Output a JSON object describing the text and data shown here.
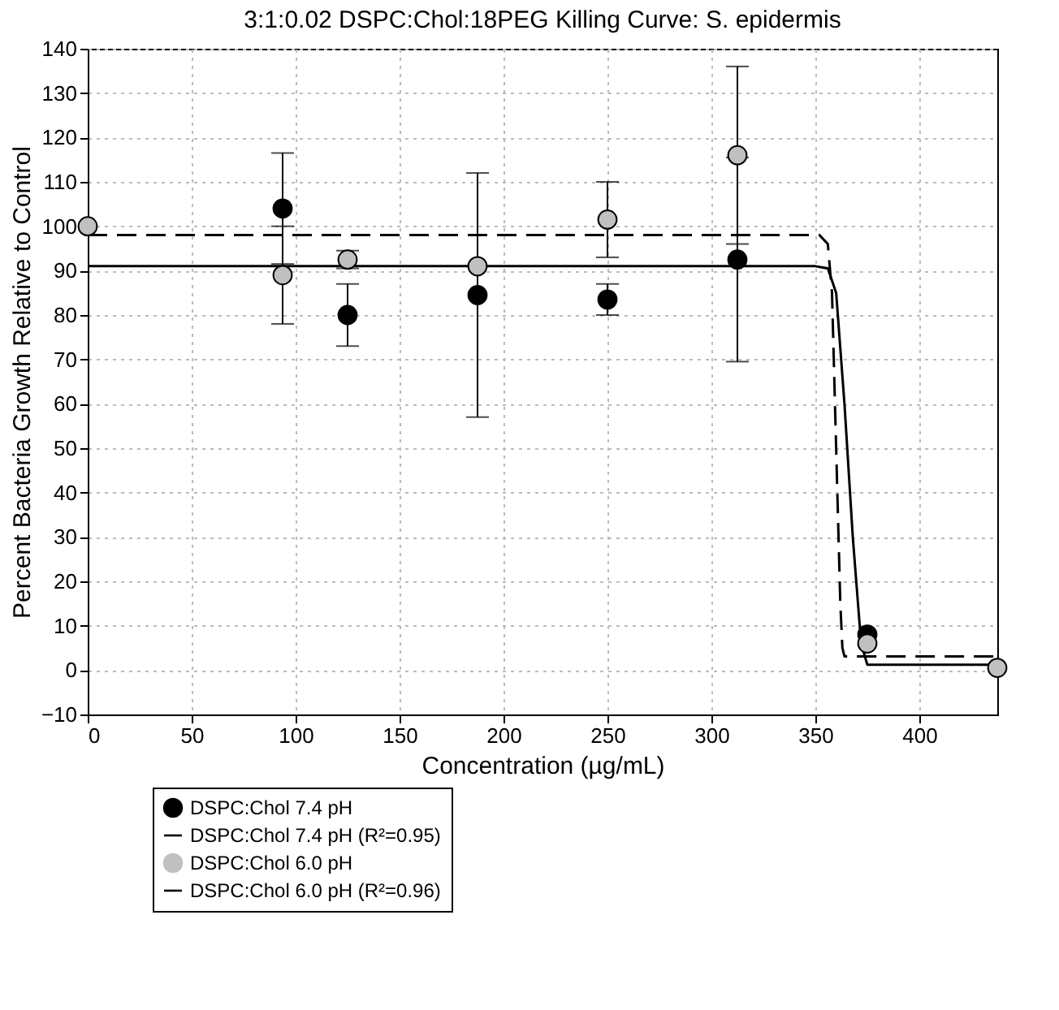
{
  "chart_data": {
    "type": "scatter",
    "title": "3:1:0.02 DSPC:Chol:18PEG Killing Curve: S. epidermis",
    "xlabel": "Concentration (µg/mL)",
    "ylabel": "Percent Bacteria Growth Relative to Control",
    "xlim": [
      0,
      437.5
    ],
    "xticks": [
      0,
      50,
      100,
      150,
      200,
      250,
      300,
      350,
      400
    ],
    "ylim": [
      -10,
      140
    ],
    "yticks": [
      -10,
      0,
      10,
      20,
      30,
      40,
      50,
      60,
      70,
      80,
      90,
      100,
      110,
      120,
      130,
      140
    ],
    "grid": true,
    "legend": "bottom",
    "series": [
      {
        "name": "DSPC:Chol 7.4 pH",
        "marker": "circle",
        "color": "#000000",
        "x": [
          93.75,
          125,
          187.5,
          250,
          312.5,
          375
        ],
        "values": [
          104,
          80,
          84.5,
          83.5,
          92.5,
          8
        ],
        "errors": [
          12.5,
          7,
          27.5,
          3.5,
          23,
          null
        ]
      },
      {
        "name": "DSPC:Chol 7.4 pH (R²=0.95)",
        "type": "line",
        "marker": "none",
        "color": "#000000",
        "line_style": "solid",
        "x": [
          0,
          350,
          356,
          360,
          364,
          368,
          372,
          375,
          437.5
        ],
        "values": [
          91,
          91,
          90.5,
          85,
          60,
          30,
          6,
          1.2,
          1.2
        ]
      },
      {
        "name": "DSPC:Chol 6.0 pH",
        "marker": "circle",
        "color": "#c0c0c0",
        "x": [
          0,
          93.75,
          125,
          187.5,
          250,
          312.5,
          375,
          437.5
        ],
        "values": [
          100,
          89,
          92.5,
          91,
          101.5,
          116,
          6,
          0.5
        ],
        "errors": [
          null,
          11,
          2,
          null,
          8.5,
          20,
          null,
          null
        ]
      },
      {
        "name": "DSPC:Chol 6.0 pH (R²=0.96)",
        "type": "line",
        "marker": "none",
        "color": "#000000",
        "line_style": "dashed",
        "x": [
          0,
          352,
          356,
          358,
          360,
          362,
          363,
          364,
          437.5
        ],
        "values": [
          98,
          98,
          96,
          85,
          50,
          15,
          5,
          3.1,
          3.1
        ]
      }
    ]
  }
}
